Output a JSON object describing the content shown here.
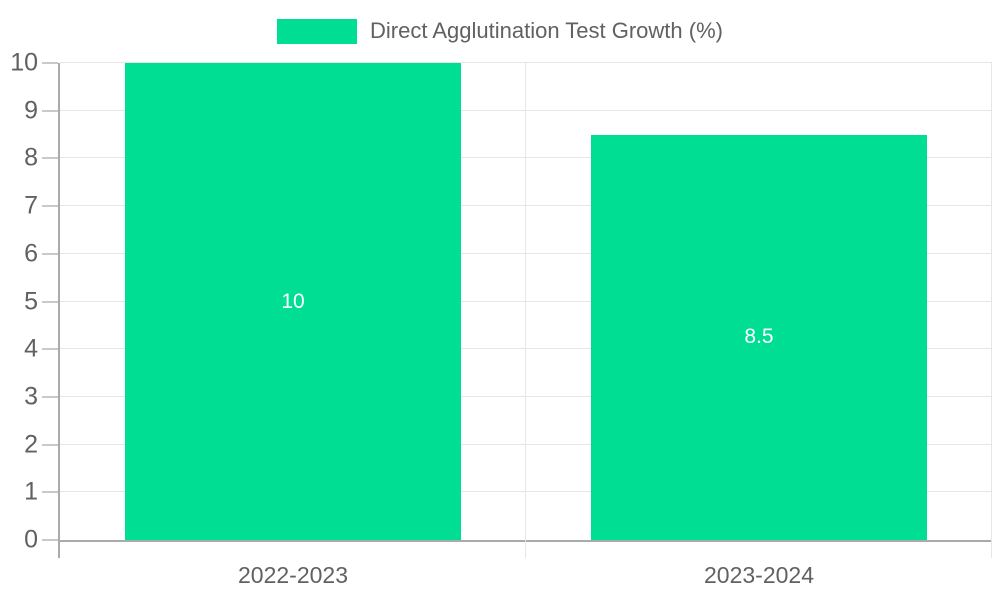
{
  "chart_data": {
    "type": "bar",
    "legend": {
      "label": "Direct Agglutination Test Growth (%)",
      "position": "top"
    },
    "categories": [
      "2022-2023",
      "2023-2024"
    ],
    "series": [
      {
        "name": "Direct Agglutination Test Growth (%)",
        "values": [
          10,
          8.5
        ],
        "value_labels": [
          "10",
          "8.5"
        ]
      }
    ],
    "ylim": [
      0,
      10
    ],
    "yticks": [
      0,
      1,
      2,
      3,
      4,
      5,
      6,
      7,
      8,
      9,
      10
    ],
    "grid": true,
    "bar_width_fraction": 0.72,
    "colors": {
      "bar": "#00de94",
      "bar_label": "#ffffff",
      "axis_line": "#aaaaaa",
      "gridline": "#e6e6e6",
      "tick_mark": "#c9c9c9",
      "tick_label": "#616161",
      "legend_text": "#616161",
      "background": "#ffffff"
    }
  }
}
